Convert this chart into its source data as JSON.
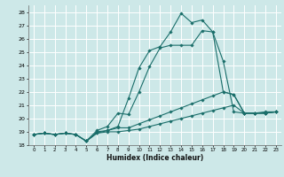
{
  "xlabel": "Humidex (Indice chaleur)",
  "ylabel": "",
  "xlim": [
    -0.5,
    23.5
  ],
  "ylim": [
    18,
    28.5
  ],
  "yticks": [
    18,
    19,
    20,
    21,
    22,
    23,
    24,
    25,
    26,
    27,
    28
  ],
  "xticks": [
    0,
    1,
    2,
    3,
    4,
    5,
    6,
    7,
    8,
    9,
    10,
    11,
    12,
    13,
    14,
    15,
    16,
    17,
    18,
    19,
    20,
    21,
    22,
    23
  ],
  "bg_color": "#cde8e8",
  "grid_color": "#b8d8d8",
  "line_color": "#1a6e6a",
  "series": [
    {
      "x": [
        0,
        1,
        2,
        3,
        4,
        5,
        6,
        7,
        8,
        9,
        10,
        11,
        12,
        13,
        14,
        15,
        16,
        17,
        18,
        19,
        20,
        21,
        22,
        23
      ],
      "y": [
        18.8,
        18.9,
        18.8,
        18.9,
        18.8,
        18.3,
        18.9,
        19.1,
        19.4,
        21.5,
        23.8,
        25.1,
        25.4,
        26.5,
        27.9,
        27.2,
        27.4,
        26.5,
        24.3,
        20.5,
        20.4,
        20.4,
        20.5,
        20.5
      ]
    },
    {
      "x": [
        0,
        1,
        2,
        3,
        4,
        5,
        6,
        7,
        8,
        9,
        10,
        11,
        12,
        13,
        14,
        15,
        16,
        17,
        18,
        19,
        20,
        21,
        22,
        23
      ],
      "y": [
        18.8,
        18.9,
        18.8,
        18.9,
        18.8,
        18.3,
        19.1,
        19.4,
        20.4,
        20.3,
        22.0,
        23.9,
        25.3,
        25.5,
        25.5,
        25.5,
        26.6,
        26.5,
        22.0,
        21.8,
        20.4,
        20.4,
        20.4,
        20.5
      ]
    },
    {
      "x": [
        0,
        1,
        2,
        3,
        4,
        5,
        6,
        7,
        8,
        9,
        10,
        11,
        12,
        13,
        14,
        15,
        16,
        17,
        18,
        19,
        20,
        21,
        22,
        23
      ],
      "y": [
        18.8,
        18.9,
        18.8,
        18.9,
        18.8,
        18.3,
        19.0,
        19.1,
        19.3,
        19.3,
        19.6,
        19.9,
        20.2,
        20.5,
        20.8,
        21.1,
        21.4,
        21.7,
        22.0,
        21.8,
        20.4,
        20.4,
        20.4,
        20.5
      ]
    },
    {
      "x": [
        0,
        1,
        2,
        3,
        4,
        5,
        6,
        7,
        8,
        9,
        10,
        11,
        12,
        13,
        14,
        15,
        16,
        17,
        18,
        19,
        20,
        21,
        22,
        23
      ],
      "y": [
        18.8,
        18.9,
        18.8,
        18.9,
        18.8,
        18.3,
        18.9,
        19.0,
        19.0,
        19.1,
        19.2,
        19.4,
        19.6,
        19.8,
        20.0,
        20.2,
        20.4,
        20.6,
        20.8,
        21.0,
        20.4,
        20.4,
        20.4,
        20.5
      ]
    }
  ]
}
